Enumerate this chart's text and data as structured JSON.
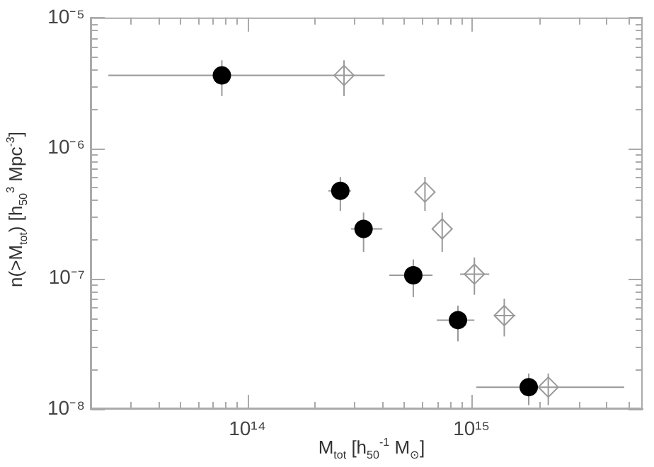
{
  "chart_data": {
    "type": "scatter",
    "xlabel": "M$_{tot}$  [h$_{50}$$^{-1}$ M$_{⊙}$]",
    "ylabel": "n(>M$_{tot}$)  [h$_{50}$$^{3}$ Mpc$^{-3}$]",
    "log": "xy",
    "grid": false,
    "legend": false,
    "xlim": [
      20000000000000.0,
      5800000000000000.0
    ],
    "ylim": [
      1e-08,
      1e-05
    ],
    "xticks": [
      {
        "value": 30000000000000.0,
        "label": null
      },
      {
        "value": 40000000000000.0,
        "label": null
      },
      {
        "value": 50000000000000.0,
        "label": null
      },
      {
        "value": 60000000000000.0,
        "label": null
      },
      {
        "value": 70000000000000.0,
        "label": null
      },
      {
        "value": 80000000000000.0,
        "label": null
      },
      {
        "value": 90000000000000.0,
        "label": null
      },
      {
        "value": 100000000000000.0,
        "label": "10¹⁴"
      },
      {
        "value": 200000000000000.0,
        "label": null
      },
      {
        "value": 300000000000000.0,
        "label": null
      },
      {
        "value": 400000000000000.0,
        "label": null
      },
      {
        "value": 500000000000000.0,
        "label": null
      },
      {
        "value": 600000000000000.0,
        "label": null
      },
      {
        "value": 700000000000000.0,
        "label": null
      },
      {
        "value": 800000000000000.0,
        "label": null
      },
      {
        "value": 900000000000000.0,
        "label": null
      },
      {
        "value": 1000000000000000.0,
        "label": "10¹⁵"
      },
      {
        "value": 2000000000000000.0,
        "label": null
      },
      {
        "value": 3000000000000000.0,
        "label": null
      },
      {
        "value": 4000000000000000.0,
        "label": null
      },
      {
        "value": 5000000000000000.0,
        "label": null
      }
    ],
    "yticks": [
      {
        "value": 1e-08,
        "label": "10⁻⁸"
      },
      {
        "value": 2e-08,
        "label": null
      },
      {
        "value": 3e-08,
        "label": null
      },
      {
        "value": 4e-08,
        "label": null
      },
      {
        "value": 5e-08,
        "label": null
      },
      {
        "value": 6e-08,
        "label": null
      },
      {
        "value": 7e-08,
        "label": null
      },
      {
        "value": 8e-08,
        "label": null
      },
      {
        "value": 9e-08,
        "label": null
      },
      {
        "value": 1e-07,
        "label": "10⁻⁷"
      },
      {
        "value": 2e-07,
        "label": null
      },
      {
        "value": 3e-07,
        "label": null
      },
      {
        "value": 4e-07,
        "label": null
      },
      {
        "value": 5e-07,
        "label": null
      },
      {
        "value": 6e-07,
        "label": null
      },
      {
        "value": 7e-07,
        "label": null
      },
      {
        "value": 8e-07,
        "label": null
      },
      {
        "value": 9e-07,
        "label": null
      },
      {
        "value": 1e-06,
        "label": "10⁻⁶"
      },
      {
        "value": 2e-06,
        "label": null
      },
      {
        "value": 3e-06,
        "label": null
      },
      {
        "value": 4e-06,
        "label": null
      },
      {
        "value": 5e-06,
        "label": null
      },
      {
        "value": 6e-06,
        "label": null
      },
      {
        "value": 7e-06,
        "label": null
      },
      {
        "value": 8e-06,
        "label": null
      },
      {
        "value": 9e-06,
        "label": null
      },
      {
        "value": 1e-05,
        "label": "10⁻⁵"
      }
    ],
    "series": [
      {
        "color": "#000000",
        "marker": "circle",
        "x": [
          77000000000000.0,
          260000000000000.0,
          330000000000000.0,
          550000000000000.0,
          870000000000000.0,
          1800000000000000.0
        ],
        "values": [
          3.6e-06,
          4.7e-07,
          2.4e-07,
          1.06e-07,
          4.8e-08,
          1.47e-08
        ],
        "errors": [
          [
            2.5e-06,
            4.7e-06
          ],
          [
            3.3e-07,
            6e-07
          ],
          [
            1.6e-07,
            3.2e-07
          ],
          [
            7.2e-08,
            1.4e-07
          ],
          [
            3.3e-08,
            6.2e-08
          ],
          [
            1.07e-08,
            1.87e-08
          ]
        ],
        "xerrors": [
          [
            24000000000000.0,
            410000000000000.0
          ],
          [
            230000000000000.0,
            290000000000000.0
          ],
          [
            290000000000000.0,
            400000000000000.0
          ],
          [
            430000000000000.0,
            670000000000000.0
          ],
          [
            700000000000000.0,
            1030000000000000.0
          ],
          [
            1050000000000000.0,
            4800000000000000.0
          ]
        ]
      },
      {
        "color": "#999999",
        "marker": "diamond",
        "x": [
          270000000000000.0,
          620000000000000.0,
          740000000000000.0,
          1030000000000000.0,
          1400000000000000.0,
          2200000000000000.0
        ],
        "values": [
          3.6e-06,
          4.6e-07,
          2.4e-07,
          1.08e-07,
          5.2e-08,
          1.47e-08
        ],
        "errors": [
          [
            2.5e-06,
            4.7e-06
          ],
          [
            3.3e-07,
            6e-07
          ],
          [
            1.6e-07,
            3.2e-07
          ],
          [
            7.5e-08,
            1.45e-07
          ],
          [
            3.6e-08,
            7e-08
          ],
          [
            1.07e-08,
            1.87e-08
          ]
        ],
        "xerrors": [
          null,
          null,
          null,
          [
            890000000000000.0,
            1200000000000000.0
          ],
          [
            1270000000000000.0,
            1570000000000000.0
          ],
          null
        ]
      }
    ]
  }
}
